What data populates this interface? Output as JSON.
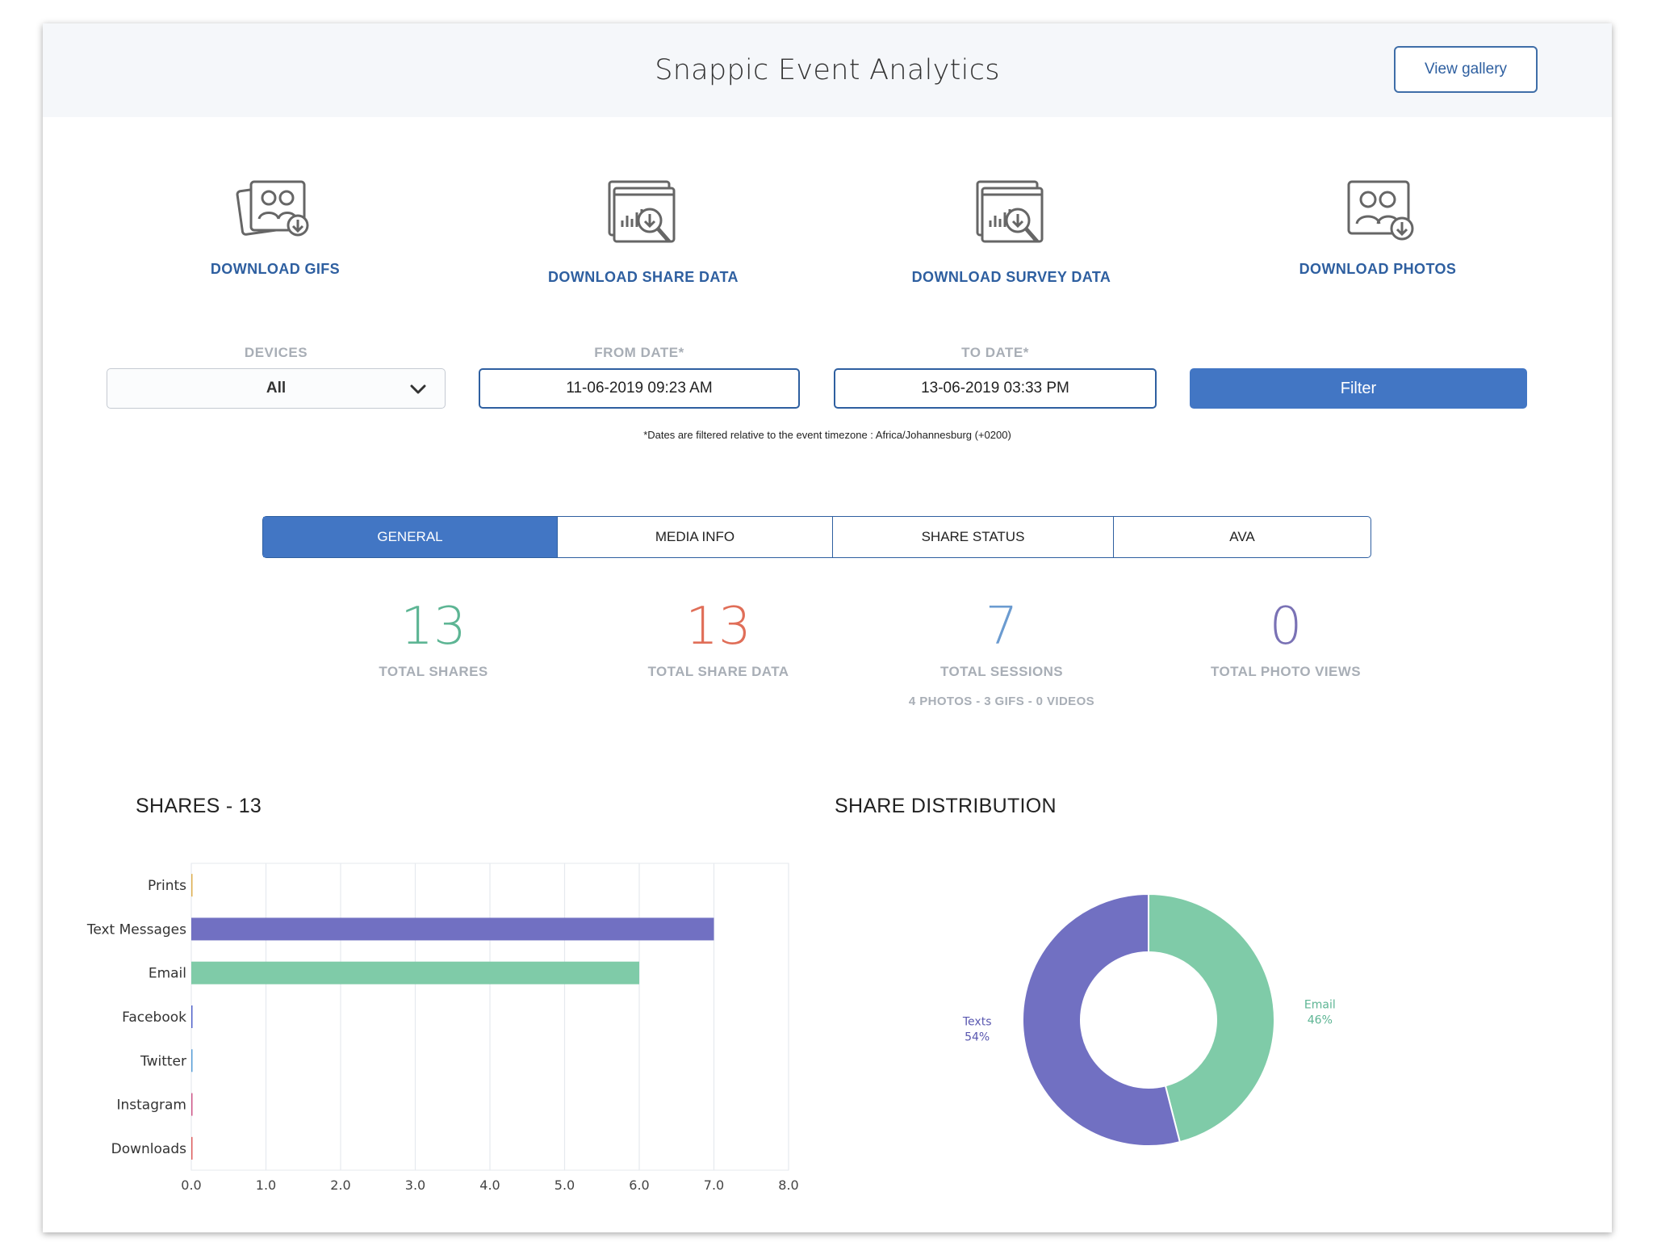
{
  "header": {
    "title": "Snappic Event Analytics",
    "view_gallery_label": "View gallery"
  },
  "downloads": [
    {
      "label": "DOWNLOAD GIFS",
      "icon": "gif-download-icon"
    },
    {
      "label": "DOWNLOAD SHARE DATA",
      "icon": "share-data-download-icon"
    },
    {
      "label": "DOWNLOAD SURVEY DATA",
      "icon": "survey-data-download-icon"
    },
    {
      "label": "DOWNLOAD PHOTOS",
      "icon": "photos-download-icon"
    }
  ],
  "filters": {
    "devices_label": "DEVICES",
    "devices_value": "All",
    "from_label": "FROM DATE*",
    "from_value": "11-06-2019 09:23 AM",
    "to_label": "TO DATE*",
    "to_value": "13-06-2019 03:33 PM",
    "filter_button": "Filter",
    "timezone_note": "*Dates are filtered relative to the event timezone : Africa/Johannesburg (+0200)"
  },
  "tabs": [
    {
      "label": "GENERAL",
      "active": true
    },
    {
      "label": "MEDIA INFO",
      "active": false
    },
    {
      "label": "SHARE STATUS",
      "active": false
    },
    {
      "label": "AVA",
      "active": false
    }
  ],
  "stats": [
    {
      "value": "13",
      "label": "TOTAL SHARES",
      "color": "#5db594"
    },
    {
      "value": "13",
      "label": "TOTAL SHARE DATA",
      "color": "#e06e58"
    },
    {
      "value": "7",
      "label": "TOTAL SESSIONS",
      "color": "#6b9bd0"
    },
    {
      "value": "0",
      "label": "TOTAL PHOTO VIEWS",
      "color": "#7a72b5"
    }
  ],
  "session_breakdown": "4 PHOTOS - 3 GIFS - 0 VIDEOS",
  "colors": {
    "accent": "#4276c4",
    "link": "#2e5fa0",
    "purple": "#7170c2",
    "green": "#7fcba8"
  },
  "chart_data": [
    {
      "type": "bar",
      "orientation": "horizontal",
      "title": "SHARES - 13",
      "categories": [
        "Prints",
        "Text Messages",
        "Email",
        "Facebook",
        "Twitter",
        "Instagram",
        "Downloads"
      ],
      "values": [
        0,
        7,
        6,
        0,
        0,
        0,
        0
      ],
      "colors": [
        "#e0b050",
        "#7170c2",
        "#7fcba8",
        "#5566cc",
        "#5aa0d8",
        "#d05a8a",
        "#e06060"
      ],
      "xlim": [
        0,
        8
      ],
      "xticks": [
        "0.0",
        "1.0",
        "2.0",
        "3.0",
        "4.0",
        "5.0",
        "6.0",
        "7.0",
        "8.0"
      ],
      "grid": true
    },
    {
      "type": "pie",
      "donut": true,
      "title": "SHARE DISTRIBUTION",
      "slices": [
        {
          "name": "Email",
          "percent": "46%",
          "value": 46,
          "color": "#7fcba8"
        },
        {
          "name": "Texts",
          "percent": "54%",
          "value": 54,
          "color": "#7170c2"
        }
      ]
    }
  ]
}
